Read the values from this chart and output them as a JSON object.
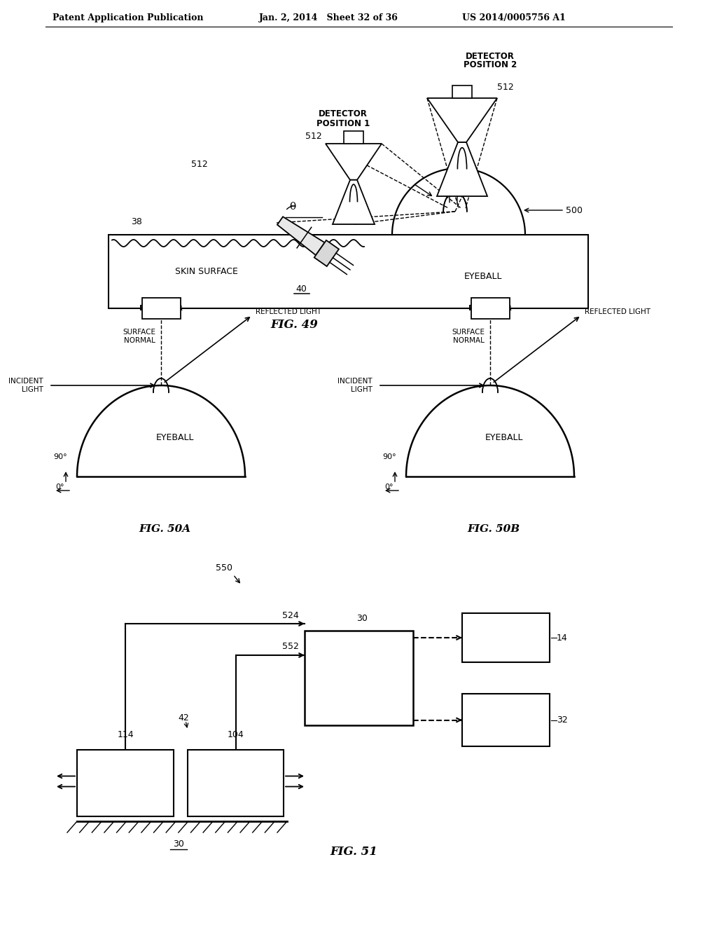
{
  "header_left": "Patent Application Publication",
  "header_mid": "Jan. 2, 2014   Sheet 32 of 36",
  "header_right": "US 2014/0005756 A1",
  "fig49_label": "FIG. 49",
  "fig50a_label": "FIG. 50A",
  "fig50b_label": "FIG. 50B",
  "fig51_label": "FIG. 51",
  "bg_color": "#ffffff",
  "line_color": "#000000"
}
